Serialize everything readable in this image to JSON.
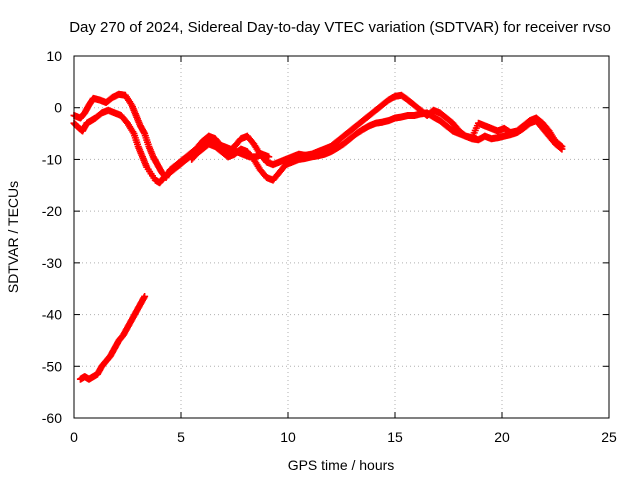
{
  "chart_data": {
    "type": "scatter",
    "title": "Day 270 of 2024, Sidereal Day-to-day VTEC variation (SDTVAR) for receiver rvso",
    "xlabel": "GPS time / hours",
    "ylabel": "SDTVAR / TECUs",
    "xlim": [
      0,
      25
    ],
    "ylim": [
      -60,
      10
    ],
    "xticks": [
      0,
      5,
      10,
      15,
      20,
      25
    ],
    "yticks": [
      10,
      0,
      -10,
      -20,
      -30,
      -40,
      -50,
      -60
    ],
    "grid": true,
    "marker": "plus",
    "series_color": "#ff0000",
    "series": [
      {
        "name": "track-1",
        "points": [
          [
            0.0,
            -1.5
          ],
          [
            0.3,
            -2.0
          ],
          [
            0.5,
            -1.0
          ],
          [
            0.7,
            0.5
          ],
          [
            0.9,
            1.8
          ],
          [
            1.2,
            1.5
          ],
          [
            1.5,
            1.0
          ],
          [
            1.8,
            2.0
          ],
          [
            2.1,
            2.6
          ],
          [
            2.4,
            2.4
          ],
          [
            2.7,
            0.5
          ],
          [
            2.9,
            -1.5
          ],
          [
            3.1,
            -3.5
          ],
          [
            3.3,
            -5.0
          ],
          [
            3.5,
            -7.5
          ],
          [
            3.7,
            -9.5
          ],
          [
            3.9,
            -11.0
          ],
          [
            4.1,
            -12.5
          ],
          [
            4.3,
            -13.5
          ],
          [
            4.5,
            -12.0
          ],
          [
            4.8,
            -11.0
          ],
          [
            5.1,
            -10.0
          ],
          [
            5.4,
            -9.0
          ],
          [
            5.7,
            -8.0
          ],
          [
            6.0,
            -6.5
          ],
          [
            6.3,
            -5.5
          ],
          [
            6.6,
            -6.0
          ],
          [
            6.9,
            -7.5
          ],
          [
            7.2,
            -8.5
          ],
          [
            7.5,
            -7.5
          ],
          [
            7.8,
            -6.0
          ],
          [
            8.1,
            -5.5
          ],
          [
            8.4,
            -7.0
          ],
          [
            8.7,
            -9.0
          ],
          [
            9.0,
            -10.5
          ],
          [
            9.3,
            -11.0
          ],
          [
            9.6,
            -10.5
          ],
          [
            9.9,
            -10.0
          ],
          [
            10.2,
            -9.5
          ],
          [
            10.5,
            -9.0
          ],
          [
            10.8,
            -9.2
          ],
          [
            11.1,
            -9.0
          ],
          [
            11.4,
            -8.5
          ],
          [
            11.7,
            -8.0
          ],
          [
            12.0,
            -7.5
          ],
          [
            12.3,
            -6.5
          ],
          [
            12.6,
            -5.5
          ],
          [
            12.9,
            -4.5
          ],
          [
            13.2,
            -3.5
          ],
          [
            13.5,
            -2.5
          ],
          [
            13.8,
            -1.5
          ],
          [
            14.1,
            -0.5
          ],
          [
            14.4,
            0.5
          ],
          [
            14.7,
            1.5
          ],
          [
            15.0,
            2.2
          ],
          [
            15.3,
            2.4
          ],
          [
            15.6,
            1.5
          ],
          [
            15.9,
            0.5
          ],
          [
            16.2,
            -0.5
          ],
          [
            16.5,
            -1.5
          ],
          [
            16.8,
            -0.5
          ],
          [
            17.1,
            -1.0
          ],
          [
            17.4,
            -2.0
          ],
          [
            17.7,
            -3.0
          ],
          [
            18.0,
            -4.5
          ],
          [
            18.3,
            -5.5
          ],
          [
            18.6,
            -5.8
          ],
          [
            18.9,
            -3.0
          ],
          [
            19.2,
            -3.5
          ],
          [
            19.5,
            -4.0
          ],
          [
            19.8,
            -4.5
          ],
          [
            20.1,
            -4.0
          ],
          [
            20.4,
            -4.8
          ],
          [
            20.7,
            -4.5
          ],
          [
            21.0,
            -3.5
          ],
          [
            21.3,
            -2.5
          ],
          [
            21.6,
            -2.0
          ],
          [
            21.9,
            -3.0
          ],
          [
            22.2,
            -4.5
          ],
          [
            22.5,
            -6.5
          ],
          [
            22.8,
            -7.5
          ]
        ]
      },
      {
        "name": "track-2",
        "points": [
          [
            0.0,
            -3.0
          ],
          [
            0.2,
            -3.8
          ],
          [
            0.4,
            -4.5
          ],
          [
            0.6,
            -3.0
          ],
          [
            0.8,
            -2.5
          ],
          [
            1.0,
            -2.0
          ],
          [
            1.3,
            -1.0
          ],
          [
            1.6,
            -0.5
          ],
          [
            1.9,
            -1.0
          ],
          [
            2.2,
            -1.5
          ],
          [
            2.5,
            -3.0
          ],
          [
            2.8,
            -5.0
          ],
          [
            3.0,
            -7.5
          ],
          [
            3.2,
            -9.5
          ],
          [
            3.4,
            -11.5
          ],
          [
            3.8,
            -14.0
          ],
          [
            4.0,
            -14.5
          ],
          [
            4.2,
            -13.5
          ],
          [
            4.5,
            -12.5
          ],
          [
            4.8,
            -11.5
          ],
          [
            5.1,
            -10.5
          ],
          [
            5.4,
            -9.5
          ],
          [
            5.7,
            -9.0
          ],
          [
            6.0,
            -8.0
          ],
          [
            6.3,
            -7.0
          ],
          [
            6.6,
            -7.5
          ],
          [
            6.9,
            -8.5
          ],
          [
            7.2,
            -9.5
          ],
          [
            7.5,
            -9.0
          ],
          [
            7.8,
            -8.0
          ],
          [
            8.1,
            -8.5
          ],
          [
            8.4,
            -10.0
          ],
          [
            8.7,
            -12.0
          ],
          [
            9.0,
            -13.5
          ],
          [
            9.3,
            -14.0
          ],
          [
            9.6,
            -12.5
          ],
          [
            9.9,
            -11.0
          ],
          [
            10.2,
            -10.5
          ],
          [
            10.5,
            -10.0
          ],
          [
            10.8,
            -9.8
          ],
          [
            11.1,
            -9.5
          ],
          [
            11.4,
            -9.3
          ],
          [
            11.7,
            -9.0
          ],
          [
            12.0,
            -8.5
          ],
          [
            12.3,
            -7.8
          ],
          [
            12.6,
            -7.0
          ],
          [
            12.9,
            -6.0
          ],
          [
            13.2,
            -5.0
          ],
          [
            13.5,
            -4.2
          ],
          [
            13.8,
            -3.5
          ],
          [
            14.1,
            -3.0
          ],
          [
            14.4,
            -2.8
          ],
          [
            14.7,
            -2.5
          ],
          [
            15.0,
            -2.0
          ],
          [
            15.3,
            -1.8
          ],
          [
            15.6,
            -1.5
          ],
          [
            15.9,
            -1.5
          ],
          [
            16.2,
            -1.2
          ],
          [
            16.5,
            -1.0
          ],
          [
            16.8,
            -1.8
          ],
          [
            17.1,
            -2.5
          ],
          [
            17.4,
            -3.5
          ],
          [
            17.7,
            -4.5
          ],
          [
            18.0,
            -5.0
          ],
          [
            18.3,
            -5.5
          ],
          [
            18.6,
            -6.0
          ],
          [
            18.9,
            -6.2
          ],
          [
            19.2,
            -5.5
          ],
          [
            19.5,
            -6.0
          ],
          [
            19.8,
            -5.8
          ],
          [
            20.1,
            -5.5
          ],
          [
            20.4,
            -5.2
          ],
          [
            20.7,
            -4.8
          ],
          [
            21.0,
            -4.0
          ],
          [
            21.3,
            -3.0
          ],
          [
            21.6,
            -2.5
          ],
          [
            21.9,
            -4.0
          ],
          [
            22.2,
            -5.5
          ],
          [
            22.5,
            -7.0
          ],
          [
            22.8,
            -8.0
          ]
        ]
      },
      {
        "name": "track-3",
        "points": [
          [
            5.5,
            -10.0
          ],
          [
            5.8,
            -8.5
          ],
          [
            6.1,
            -7.0
          ],
          [
            6.4,
            -6.5
          ],
          [
            6.7,
            -7.0
          ],
          [
            7.0,
            -7.5
          ],
          [
            7.3,
            -8.0
          ],
          [
            7.6,
            -8.5
          ],
          [
            7.9,
            -9.0
          ],
          [
            8.2,
            -9.5
          ],
          [
            8.5,
            -9.5
          ],
          [
            8.8,
            -9.0
          ],
          [
            9.1,
            -9.5
          ]
        ]
      },
      {
        "name": "track-4",
        "points": [
          [
            0.3,
            -52.5
          ],
          [
            0.5,
            -52.0
          ],
          [
            0.7,
            -52.5
          ],
          [
            0.9,
            -52.0
          ],
          [
            1.1,
            -51.5
          ],
          [
            1.3,
            -50.0
          ],
          [
            1.5,
            -49.0
          ],
          [
            1.7,
            -48.0
          ],
          [
            1.9,
            -46.5
          ],
          [
            2.1,
            -45.0
          ],
          [
            2.3,
            -44.0
          ],
          [
            2.5,
            -42.5
          ],
          [
            2.7,
            -41.0
          ],
          [
            2.9,
            -39.5
          ],
          [
            3.1,
            -38.0
          ],
          [
            3.3,
            -36.5
          ]
        ]
      }
    ]
  }
}
